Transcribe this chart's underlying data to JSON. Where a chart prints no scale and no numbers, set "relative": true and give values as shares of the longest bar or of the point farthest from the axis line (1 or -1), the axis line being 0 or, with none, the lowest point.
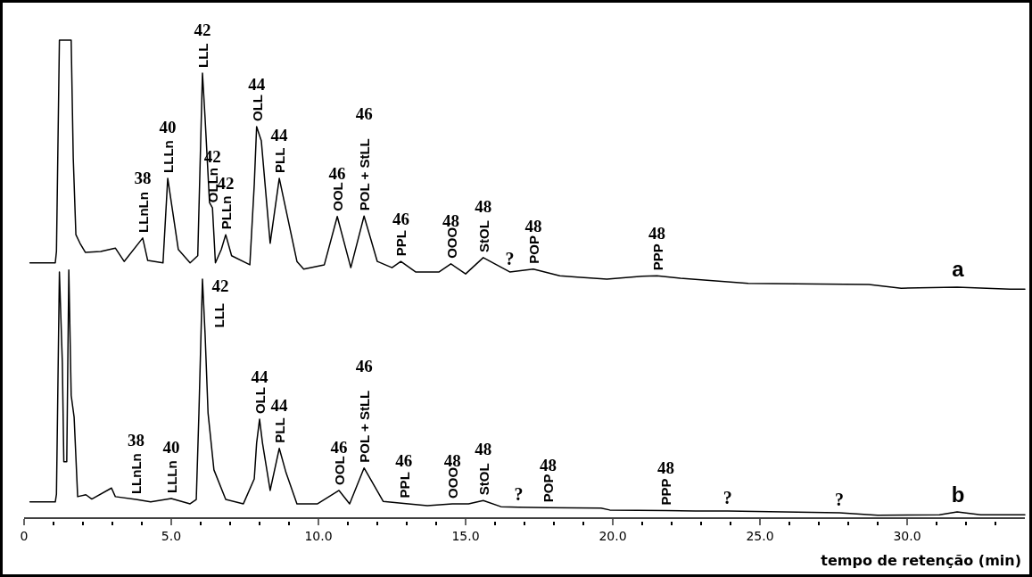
{
  "chart_data": {
    "type": "line",
    "relative": true,
    "xlabel": "tempo de retenção (min)",
    "xlim": [
      0,
      34
    ],
    "xticks": [
      0,
      {
        "value": 1,
        "label": null
      },
      {
        "value": 2,
        "label": null
      },
      {
        "value": 3,
        "label": null
      },
      {
        "value": 4,
        "label": null
      },
      {
        "value": 5,
        "label": "5.0"
      },
      {
        "value": 6,
        "label": null
      },
      {
        "value": 7,
        "label": null
      },
      {
        "value": 8,
        "label": null
      },
      {
        "value": 9,
        "label": null
      },
      {
        "value": 10,
        "label": "10.0"
      },
      {
        "value": 11,
        "label": null
      },
      {
        "value": 12,
        "label": null
      },
      {
        "value": 13,
        "label": null
      },
      {
        "value": 14,
        "label": null
      },
      {
        "value": 15,
        "label": "15.0"
      },
      {
        "value": 16,
        "label": null
      },
      {
        "value": 17,
        "label": null
      },
      {
        "value": 18,
        "label": null
      },
      {
        "value": 19,
        "label": null
      },
      {
        "value": 20,
        "label": "20.0"
      },
      {
        "value": 21,
        "label": null
      },
      {
        "value": 22,
        "label": null
      },
      {
        "value": 23,
        "label": null
      },
      {
        "value": 24,
        "label": null
      },
      {
        "value": 25,
        "label": "25.0"
      },
      {
        "value": 26,
        "label": null
      },
      {
        "value": 27,
        "label": null
      },
      {
        "value": 28,
        "label": null
      },
      {
        "value": 29,
        "label": null
      },
      {
        "value": 30,
        "label": "30.0"
      },
      {
        "value": 31,
        "label": null
      },
      {
        "value": 32,
        "label": null
      },
      {
        "value": 33,
        "label": null
      }
    ],
    "series": [
      {
        "name": "a",
        "color": "#000000",
        "x": [
          0.2,
          1.06,
          1.1,
          1.2,
          1.6,
          1.67,
          1.76,
          1.9,
          2.08,
          2.6,
          3.1,
          3.4,
          4.03,
          4.2,
          4.72,
          4.88,
          5.24,
          5.64,
          5.9,
          6.06,
          6.15,
          6.3,
          6.4,
          6.5,
          6.7,
          6.85,
          7.05,
          7.67,
          7.82,
          7.9,
          8.06,
          8.36,
          8.67,
          9.27,
          9.5,
          10.2,
          10.64,
          11.1,
          11.55,
          12.0,
          12.5,
          12.8,
          13.3,
          14.1,
          14.5,
          15.0,
          15.6,
          16.5,
          17.3,
          18.2,
          18.8,
          19.8,
          21.0,
          21.5,
          22.3,
          24.6,
          28.7,
          29.8,
          31.7,
          33.5,
          34
        ],
        "values": [
          0.534,
          0.534,
          0.558,
          1.0,
          1.0,
          0.754,
          0.593,
          0.575,
          0.556,
          0.558,
          0.565,
          0.537,
          0.586,
          0.539,
          0.534,
          0.711,
          0.562,
          0.534,
          0.549,
          0.931,
          0.836,
          0.66,
          0.649,
          0.534,
          0.562,
          0.593,
          0.549,
          0.53,
          0.698,
          0.819,
          0.789,
          0.575,
          0.711,
          0.537,
          0.521,
          0.53,
          0.631,
          0.524,
          0.632,
          0.537,
          0.524,
          0.537,
          0.515,
          0.515,
          0.532,
          0.511,
          0.545,
          0.515,
          0.521,
          0.507,
          0.504,
          0.5,
          0.506,
          0.507,
          0.502,
          0.491,
          0.489,
          0.481,
          0.483,
          0.479,
          0.479
        ]
      },
      {
        "name": "b",
        "color": "#000000",
        "x": [
          0.2,
          1.06,
          1.1,
          1.2,
          1.3,
          1.35,
          1.45,
          1.52,
          1.6,
          1.7,
          1.82,
          2.1,
          2.3,
          2.97,
          3.1,
          3.8,
          4.3,
          5.0,
          5.64,
          5.85,
          5.94,
          6.06,
          6.15,
          6.25,
          6.45,
          6.85,
          7.45,
          7.82,
          7.9,
          8.0,
          8.1,
          8.36,
          8.67,
          8.9,
          9.27,
          9.97,
          10.7,
          11.06,
          11.55,
          12.2,
          12.9,
          13.7,
          14.55,
          15.1,
          15.6,
          16.2,
          16.8,
          17.8,
          19.6,
          19.9,
          21.8,
          22.8,
          23.9,
          27.7,
          29.0,
          31.1,
          31.7,
          32.5,
          34
        ],
        "values": [
          0.034,
          0.034,
          0.05,
          0.515,
          0.325,
          0.118,
          0.118,
          0.519,
          0.257,
          0.211,
          0.045,
          0.049,
          0.04,
          0.063,
          0.045,
          0.039,
          0.034,
          0.041,
          0.03,
          0.039,
          0.22,
          0.5,
          0.384,
          0.22,
          0.101,
          0.039,
          0.03,
          0.082,
          0.157,
          0.207,
          0.157,
          0.058,
          0.146,
          0.095,
          0.03,
          0.03,
          0.058,
          0.03,
          0.105,
          0.035,
          0.031,
          0.026,
          0.03,
          0.03,
          0.037,
          0.024,
          0.023,
          0.022,
          0.021,
          0.017,
          0.016,
          0.015,
          0.015,
          0.011,
          0.006,
          0.007,
          0.013,
          0.007,
          0.007
        ]
      }
    ],
    "annotations": [
      "38",
      {
        "text": "LLnLn",
        "x": 4.03,
        "y": 0.586
      },
      "40",
      {
        "text": "LLLn",
        "x": 4.88,
        "y": 0.711
      },
      "42",
      {
        "text": "LLL",
        "x": 6.06,
        "y": 0.931
      },
      "42",
      {
        "text": "OLLn",
        "x": 6.4,
        "y": 0.649
      },
      "42",
      {
        "text": "PLLn",
        "x": 6.85,
        "y": 0.593
      },
      "44",
      {
        "text": "OLL",
        "x": 7.9,
        "y": 0.819
      },
      "44",
      {
        "text": "PLL",
        "x": 8.67,
        "y": 0.711
      },
      "46",
      {
        "text": "OOL",
        "x": 10.64,
        "y": 0.631
      },
      "46",
      {
        "text": "POL + StLL",
        "x": 11.55,
        "y": 0.632
      },
      "46",
      {
        "text": "PPL",
        "x": 12.8,
        "y": 0.537
      },
      "48",
      {
        "text": "OOO",
        "x": 14.5,
        "y": 0.532
      },
      "48",
      {
        "text": "StOL",
        "x": 15.6,
        "y": 0.545
      },
      {
        "text": "?",
        "x": 16.5,
        "y": 0.515
      },
      "48",
      {
        "text": "POP",
        "x": 17.3,
        "y": 0.521
      },
      "48",
      {
        "text": "PPP",
        "x": 21.5,
        "y": 0.507
      },
      "38",
      {
        "text": "LLnLn",
        "x": 3.8,
        "y": 0.039
      },
      "40",
      {
        "text": "LLLn",
        "x": 5.0,
        "y": 0.041
      },
      "42",
      {
        "text": "LLL",
        "x": 6.06,
        "y": 0.5
      },
      "44",
      {
        "text": "OLL",
        "x": 8.0,
        "y": 0.207
      },
      "44",
      {
        "text": "PLL",
        "x": 8.67,
        "y": 0.146
      },
      "46",
      {
        "text": "OOL",
        "x": 10.7,
        "y": 0.058
      },
      "46",
      {
        "text": "POL + StLL",
        "x": 11.55,
        "y": 0.105
      },
      "46",
      {
        "text": "PPL",
        "x": 12.9,
        "y": 0.031
      },
      "48",
      {
        "text": "OOO",
        "x": 14.55,
        "y": 0.03
      },
      "48",
      {
        "text": "StOL",
        "x": 15.6,
        "y": 0.037
      },
      {
        "text": "?",
        "x": 16.8,
        "y": 0.023
      },
      "48",
      {
        "text": "POP",
        "x": 17.8,
        "y": 0.022
      },
      "48",
      {
        "text": "PPP",
        "x": 21.8,
        "y": 0.016
      },
      {
        "text": "?",
        "x": 23.9,
        "y": 0.015
      },
      {
        "text": "?",
        "x": 27.7,
        "y": 0.011
      }
    ]
  }
}
